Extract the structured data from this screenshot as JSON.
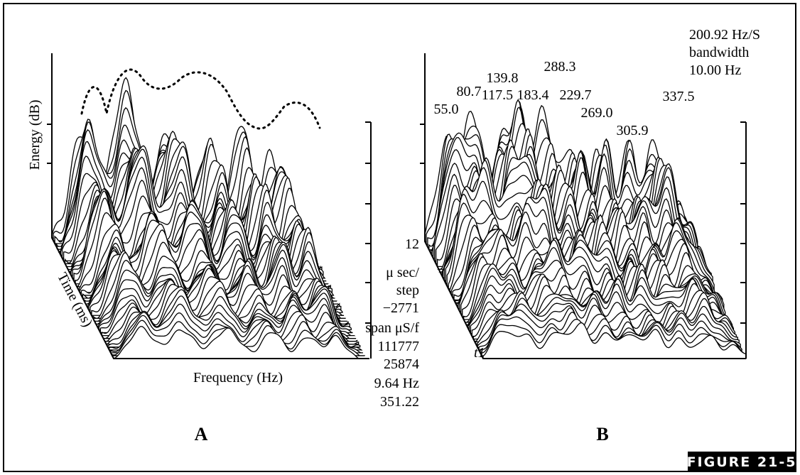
{
  "panel_a": {
    "y_label": "Energy (dB)",
    "z_label": "Time (ms)",
    "x_label": "Frequency (Hz)",
    "letter": "A"
  },
  "panel_b": {
    "settings": [
      "200.92 Hz/S",
      "bandwidth",
      "10.00 Hz"
    ],
    "peak_labels": [
      "55.0",
      "80.7",
      "117.5",
      "139.8",
      "183.4",
      "229.7",
      "269.0",
      "288.3",
      "305.9",
      "337.5"
    ],
    "side_labels": [
      "12",
      "μ sec/",
      "step",
      "−2771",
      "span μS/f",
      "111777",
      "25874",
      "9.64 Hz",
      "351.22"
    ],
    "trace_label": "t1",
    "letter": "B"
  },
  "figure_label": "FIGURE 21-5"
}
